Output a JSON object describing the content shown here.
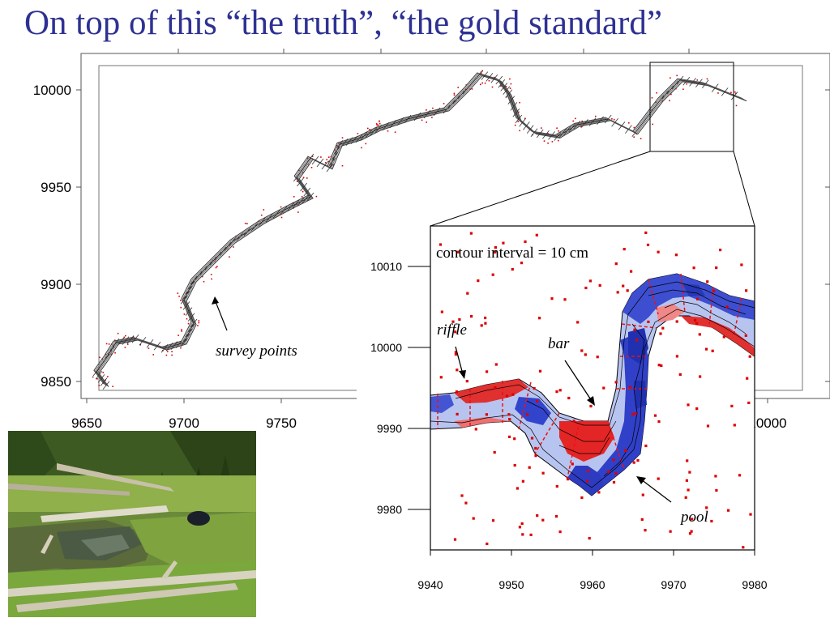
{
  "slide": {
    "title": "On top of this “the truth”, “the gold standard”"
  },
  "chart_data": [
    {
      "type": "scatter",
      "xlim": [
        9650,
        10000
      ],
      "ylim": [
        9850,
        10010
      ],
      "x_ticks": [
        "9650",
        "9700",
        "9750",
        "10000"
      ],
      "y_ticks": [
        "10000",
        "9950",
        "9900",
        "9850"
      ],
      "annotations": [
        "survey points"
      ],
      "series": [
        {
          "color": "#000000",
          "x": [
            9660,
            9655,
            9660,
            9665,
            9675,
            9690,
            9700,
            9705,
            9700,
            9705,
            9715,
            9725,
            9740,
            9755,
            9765,
            9758,
            9765,
            9775,
            9780,
            9790,
            9800,
            9815,
            9835,
            9845,
            9852,
            9862,
            9867,
            9872,
            9880,
            9892,
            9902,
            9918,
            9932,
            9945,
            9955,
            9968,
            9988
          ],
          "y": [
            9848,
            9855,
            9862,
            9870,
            9872,
            9867,
            9870,
            9880,
            9892,
            9902,
            9912,
            9922,
            9932,
            9940,
            9945,
            9955,
            9965,
            9960,
            9972,
            9975,
            9980,
            9985,
            9990,
            10000,
            10008,
            10005,
            9998,
            9985,
            9978,
            9976,
            9982,
            9985,
            9978,
            9995,
            10005,
            10003,
            9995
          ]
        }
      ]
    },
    {
      "type": "heatmap",
      "xlim": [
        9940,
        9980
      ],
      "ylim": [
        9975,
        10015
      ],
      "x_ticks": [
        "9940",
        "9950",
        "9960",
        "9970",
        "9980"
      ],
      "y_ticks": [
        "10010",
        "10000",
        "9990",
        "9980"
      ],
      "annotations": [
        "contour interval = 10 cm",
        "riffle",
        "bar",
        "pool"
      ],
      "colors": {
        "deep": "#3333cc",
        "shallow": "#e02020",
        "points": "#dd0000"
      }
    }
  ],
  "photo": {
    "kind": "stream-photo"
  }
}
